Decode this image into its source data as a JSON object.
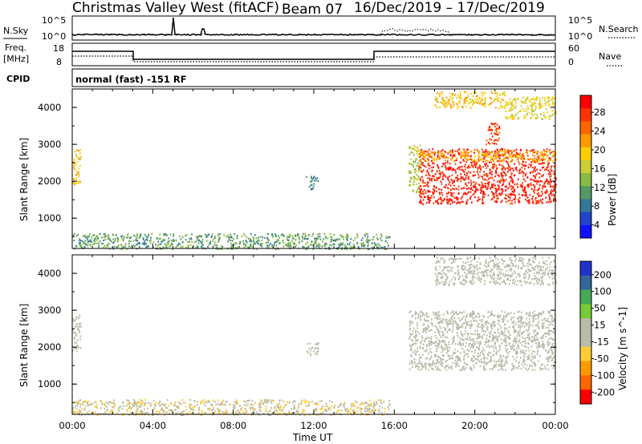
{
  "header": {
    "left": "Christmas Valley West (fitACF)",
    "middle": "Beam 07",
    "right": "16/Dec/2019 – 17/Dec/2019"
  },
  "panels": {
    "nsky_label": "N.Sky",
    "nsky_ticks": [
      "10^5",
      "10^0"
    ],
    "nsearch_label": "N.Search",
    "nsearch_ticks": [
      "10^5",
      "10^0"
    ],
    "freq_label_top": "Freq.",
    "freq_label_bottom": "[MHz]",
    "freq_ticks": [
      "18",
      "8"
    ],
    "nave_ticks": [
      "60",
      "0"
    ],
    "nave_label": "Nave",
    "cpid_label": "CPID",
    "cpid_value": "normal (fast) -151 RF"
  },
  "axes": {
    "ylabel": "Slant Range [km]",
    "yticks": [
      "4000",
      "3000",
      "2000",
      "1000"
    ],
    "xlabel": "Time UT",
    "xticks": [
      "00:00",
      "04:00",
      "08:00",
      "12:00",
      "16:00",
      "20:00",
      "00:00"
    ]
  },
  "colors": {
    "power_scale": [
      "#ff0000",
      "#ff3300",
      "#ff6600",
      "#ff9900",
      "#ffcc00",
      "#cccc33",
      "#88bb44",
      "#559966",
      "#337799",
      "#2244cc",
      "#1111ff"
    ],
    "velocity_scale": [
      "#2233cc",
      "#336699",
      "#44aa55",
      "#77cc33",
      "#bbbbaa",
      "#bbbbaa",
      "#ffcc33",
      "#ff9900",
      "#ff6600",
      "#ff0000"
    ]
  },
  "chart_data": [
    {
      "type": "heatmap",
      "name": "power",
      "x_unit": "hours UT",
      "x_range": [
        0,
        24
      ],
      "ylim": [
        180,
        4500
      ],
      "colorbar": {
        "label": "Power [dB]",
        "ticks": [
          "28",
          "24",
          "20",
          "16",
          "12",
          "8",
          "4"
        ],
        "range": [
          0,
          30
        ]
      },
      "regions": [
        {
          "x": [
            0.0,
            0.4
          ],
          "y": [
            1900,
            2900
          ],
          "value": 18
        },
        {
          "x": [
            0.0,
            15.8
          ],
          "y": [
            180,
            600
          ],
          "value": 10
        },
        {
          "x": [
            11.6,
            12.2
          ],
          "y": [
            1800,
            2150
          ],
          "value": 8
        },
        {
          "x": [
            16.7,
            17.3
          ],
          "y": [
            1700,
            3000
          ],
          "value": 14
        },
        {
          "x": [
            17.2,
            24.0
          ],
          "y": [
            1400,
            2900
          ],
          "value": 27
        },
        {
          "x": [
            17.2,
            24.0
          ],
          "y": [
            2550,
            2850
          ],
          "value": 19
        },
        {
          "x": [
            18.0,
            21.5
          ],
          "y": [
            4000,
            4450
          ],
          "value": 18
        },
        {
          "x": [
            21.5,
            24.0
          ],
          "y": [
            3700,
            4300
          ],
          "value": 16
        },
        {
          "x": [
            20.5,
            21.2
          ],
          "y": [
            3000,
            3600
          ],
          "value": 26
        }
      ]
    },
    {
      "type": "heatmap",
      "name": "velocity",
      "x_unit": "hours UT",
      "x_range": [
        0,
        24
      ],
      "ylim": [
        180,
        4500
      ],
      "colorbar": {
        "label": "Velocity [m s^-1]",
        "ticks": [
          "200",
          "100",
          "50",
          "15",
          "-15",
          "-50",
          "-100",
          "-200"
        ],
        "range": [
          -250,
          250
        ]
      },
      "regions": [
        {
          "x": [
            0.0,
            0.4
          ],
          "y": [
            1900,
            2900
          ],
          "value": 0
        },
        {
          "x": [
            0.0,
            15.8
          ],
          "y": [
            180,
            600
          ],
          "value": -40
        },
        {
          "x": [
            11.6,
            12.2
          ],
          "y": [
            1800,
            2150
          ],
          "value": 0
        },
        {
          "x": [
            16.7,
            24.0
          ],
          "y": [
            1400,
            3000
          ],
          "value": 0
        },
        {
          "x": [
            18.0,
            24.0
          ],
          "y": [
            3700,
            4450
          ],
          "value": 0
        }
      ]
    }
  ]
}
